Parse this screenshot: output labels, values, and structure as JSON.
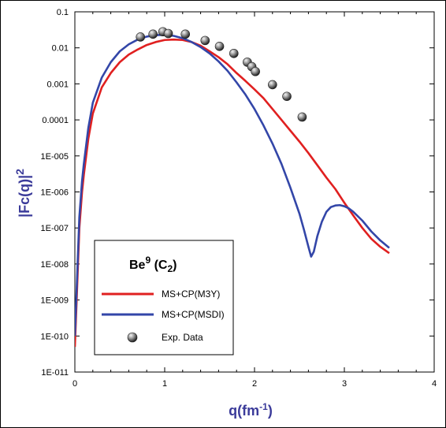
{
  "chart_data": {
    "type": "line",
    "title": "",
    "xlabel_main": "q(fm",
    "xlabel_sup": "-1",
    "xlabel_close": ")",
    "ylabel_main": "|Fc(q)|",
    "ylabel_sup": "2",
    "x_range": [
      0,
      4
    ],
    "y_range": [
      1e-11,
      0.1
    ],
    "y_scale": "log",
    "x_ticks": [
      "0",
      "1",
      "2",
      "3",
      "4"
    ],
    "y_ticks": [
      "0.1",
      "0.01",
      "0.001",
      "0.0001",
      "1E-005",
      "1E-006",
      "1E-007",
      "1E-008",
      "1E-009",
      "1E-010",
      "1E-011"
    ],
    "legend": {
      "placement": "bottom-left",
      "title_main": "Be",
      "title_sup": "9",
      "title_sub_open": " (C",
      "title_sub": "2",
      "title_sub_close": ")",
      "entries": [
        "MS+CP(M3Y)",
        "MS+CP(MSDI)",
        "Exp. Data"
      ]
    },
    "series": [
      {
        "name": "MS+CP(M3Y)",
        "color": "#e02020",
        "x": [
          0.0,
          0.02,
          0.05,
          0.08,
          0.1,
          0.15,
          0.2,
          0.3,
          0.4,
          0.5,
          0.6,
          0.7,
          0.8,
          0.9,
          1.0,
          1.1,
          1.2,
          1.3,
          1.4,
          1.5,
          1.6,
          1.7,
          1.8,
          1.9,
          2.0,
          2.1,
          2.2,
          2.3,
          2.4,
          2.5,
          2.6,
          2.7,
          2.8,
          2.9,
          3.0,
          3.1,
          3.2,
          3.3,
          3.4,
          3.5
        ],
        "y": [
          5e-11,
          1e-09,
          1e-07,
          1e-06,
          3e-06,
          3e-05,
          0.00015,
          0.0008,
          0.002,
          0.004,
          0.0065,
          0.009,
          0.012,
          0.0145,
          0.0165,
          0.017,
          0.0165,
          0.0145,
          0.0115,
          0.008,
          0.0055,
          0.0035,
          0.002,
          0.0012,
          0.0007,
          0.0004,
          0.0002,
          0.0001,
          5e-05,
          2.5e-05,
          1.2e-05,
          5.5e-06,
          2.5e-06,
          1.2e-06,
          5e-07,
          2.2e-07,
          1e-07,
          5e-08,
          3e-08,
          2e-08
        ]
      },
      {
        "name": "MS+CP(MSDI)",
        "color": "#3346a8",
        "x": [
          0.0,
          0.02,
          0.05,
          0.08,
          0.1,
          0.15,
          0.2,
          0.3,
          0.4,
          0.5,
          0.6,
          0.7,
          0.8,
          0.9,
          1.0,
          1.1,
          1.2,
          1.3,
          1.4,
          1.5,
          1.6,
          1.7,
          1.8,
          1.9,
          2.0,
          2.1,
          2.2,
          2.3,
          2.4,
          2.5,
          2.55,
          2.6,
          2.63,
          2.66,
          2.7,
          2.75,
          2.8,
          2.85,
          2.9,
          2.95,
          3.0,
          3.05,
          3.1,
          3.2,
          3.3,
          3.4,
          3.5
        ],
        "y": [
          1e-10,
          2e-09,
          2e-07,
          2e-06,
          6e-06,
          6e-05,
          0.0003,
          0.0015,
          0.004,
          0.008,
          0.0125,
          0.017,
          0.0205,
          0.0225,
          0.023,
          0.0215,
          0.0185,
          0.0145,
          0.0105,
          0.007,
          0.0042,
          0.0023,
          0.0011,
          0.0005,
          0.0002,
          7e-05,
          2.2e-05,
          6e-06,
          1.3e-06,
          2.5e-07,
          9e-08,
          3e-08,
          1.6e-08,
          2.2e-08,
          6e-08,
          1.5e-07,
          2.8e-07,
          3.8e-07,
          4.2e-07,
          4.3e-07,
          4e-07,
          3.5e-07,
          2.8e-07,
          1.6e-07,
          8e-08,
          4.5e-08,
          2.8e-08
        ]
      },
      {
        "name": "Exp. Data",
        "marker": "sphere",
        "x": [
          0.73,
          0.87,
          0.98,
          1.04,
          1.23,
          1.45,
          1.61,
          1.77,
          1.92,
          1.97,
          2.01,
          2.2,
          2.36,
          2.53
        ],
        "y": [
          0.02,
          0.024,
          0.028,
          0.025,
          0.024,
          0.016,
          0.011,
          0.007,
          0.004,
          0.003,
          0.0022,
          0.00095,
          0.00045,
          0.00012
        ]
      }
    ]
  }
}
